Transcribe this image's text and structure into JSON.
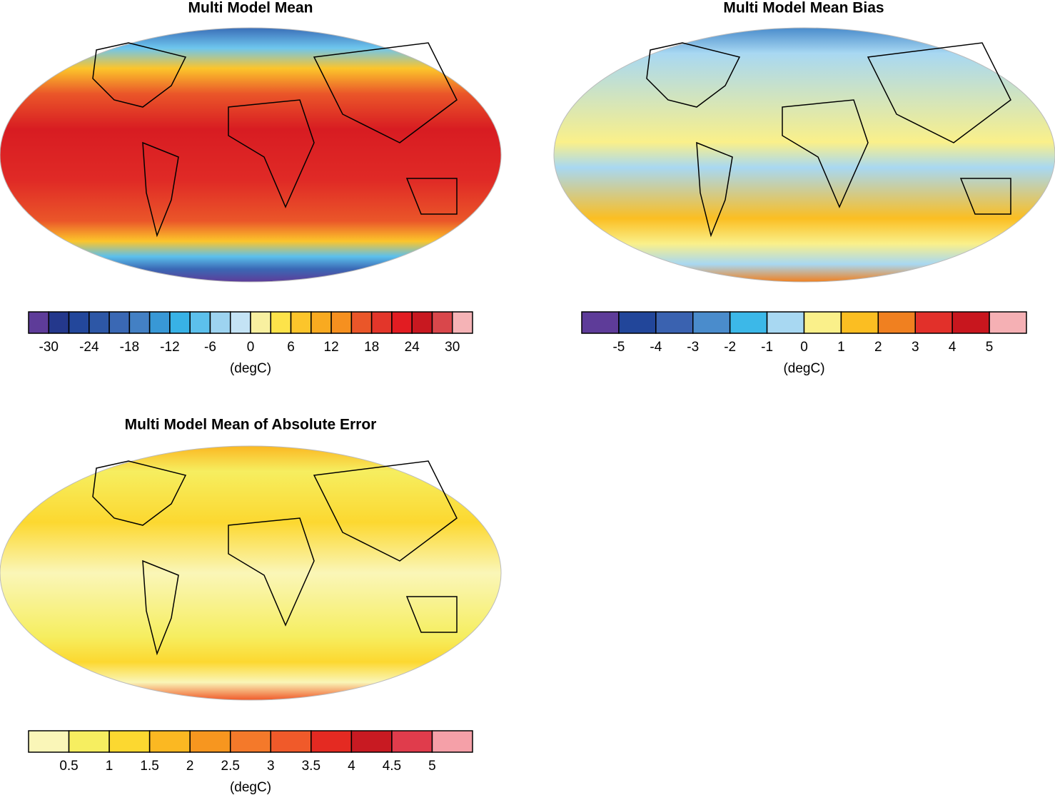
{
  "panels": [
    {
      "title": "Multi Model Mean",
      "colorbar": {
        "colors": [
          "#5e3c99",
          "#24388c",
          "#23479b",
          "#2d57a6",
          "#3a68b4",
          "#4380c4",
          "#3898d6",
          "#38b2e6",
          "#5cc0ec",
          "#9dd3f0",
          "#c4e3f5",
          "#f8f0a0",
          "#fde34a",
          "#fcc52b",
          "#f9aa20",
          "#f6901f",
          "#ea5629",
          "#e3362a",
          "#e21c22",
          "#c81820",
          "#d9474b",
          "#f5b3b6"
        ],
        "ticks": [
          -30,
          -24,
          -18,
          -12,
          -6,
          0,
          6,
          12,
          18,
          24,
          30
        ],
        "units": "(degC)"
      }
    },
    {
      "title": "Multi Model Mean Bias",
      "colorbar": {
        "colors": [
          "#5e3c99",
          "#22469a",
          "#3a62b0",
          "#4a8ccc",
          "#3cb8e8",
          "#a8d8f2",
          "#faf08a",
          "#fbbe22",
          "#f08020",
          "#e2302a",
          "#c8161e",
          "#f5b0b4"
        ],
        "ticks": [
          -5,
          -4,
          -3,
          -2,
          -1,
          0,
          1,
          2,
          3,
          4,
          5
        ],
        "units": "(degC)"
      }
    },
    {
      "title": "Multi Model Mean of Absolute Error",
      "colorbar": {
        "colors": [
          "#faf6b8",
          "#f6ee60",
          "#fcd830",
          "#fbb822",
          "#f7961f",
          "#f4792a",
          "#f05a2a",
          "#e42a22",
          "#c81a22",
          "#e03c4c",
          "#f5a0a8"
        ],
        "ticks": [
          0.5,
          1,
          1.5,
          2,
          2.5,
          3,
          3.5,
          4,
          4.5,
          5
        ],
        "units": "(degC)"
      }
    }
  ]
}
